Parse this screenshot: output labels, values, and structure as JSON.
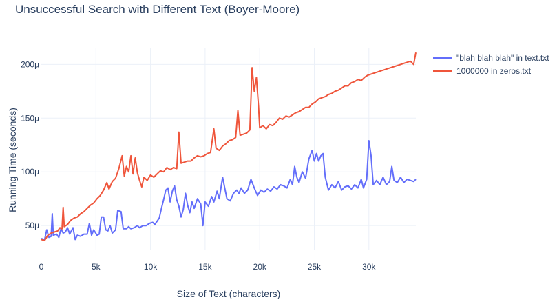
{
  "chart_data": {
    "type": "line",
    "title": "Unsuccessful Search with Different Text (Boyer-Moore)",
    "xlabel": "Size of Text (characters)",
    "ylabel": "Running Time (seconds)",
    "xlim": [
      0,
      34300
    ],
    "ylim": [
      2.7e-05,
      0.000215
    ],
    "x_ticks": [
      {
        "value": 0,
        "label": "0"
      },
      {
        "value": 5000,
        "label": "5k"
      },
      {
        "value": 10000,
        "label": "10k"
      },
      {
        "value": 15000,
        "label": "15k"
      },
      {
        "value": 20000,
        "label": "20k"
      },
      {
        "value": 25000,
        "label": "25k"
      },
      {
        "value": 30000,
        "label": "30k"
      }
    ],
    "y_ticks": [
      {
        "value": 5e-05,
        "label": "50μ"
      },
      {
        "value": 0.0001,
        "label": "100μ"
      },
      {
        "value": 0.00015,
        "label": "150μ"
      },
      {
        "value": 0.0002,
        "label": "200μ"
      }
    ],
    "grid": true,
    "legend_position": "top-right",
    "series": [
      {
        "name": "\"blah blah blah\" in text.txt",
        "color": "#636efa",
        "points": [
          [
            0,
            3.8e-05
          ],
          [
            300,
            3.7e-05
          ],
          [
            500,
            4.6e-05
          ],
          [
            700,
            3.9e-05
          ],
          [
            900,
            4e-05
          ],
          [
            1000,
            6.1e-05
          ],
          [
            1100,
            4.1e-05
          ],
          [
            1400,
            4.2e-05
          ],
          [
            1600,
            3.9e-05
          ],
          [
            1800,
            4.7e-05
          ],
          [
            2000,
            4.3e-05
          ],
          [
            2200,
            4.4e-05
          ],
          [
            2400,
            4.8e-05
          ],
          [
            2600,
            4.2e-05
          ],
          [
            2900,
            4.8e-05
          ],
          [
            3100,
            3.7e-05
          ],
          [
            3300,
            4.1e-05
          ],
          [
            3600,
            4e-05
          ],
          [
            3900,
            4.2e-05
          ],
          [
            4200,
            4.2e-05
          ],
          [
            4400,
            5.2e-05
          ],
          [
            4600,
            4.1e-05
          ],
          [
            4800,
            4.6e-05
          ],
          [
            5100,
            4.1e-05
          ],
          [
            5300,
            4.2e-05
          ],
          [
            5500,
            5.8e-05
          ],
          [
            5700,
            5.8e-05
          ],
          [
            5900,
            4.6e-05
          ],
          [
            6100,
            4.5e-05
          ],
          [
            6300,
            5e-05
          ],
          [
            6500,
            4.3e-05
          ],
          [
            6800,
            4.6e-05
          ],
          [
            7000,
            6.4e-05
          ],
          [
            7300,
            6.3e-05
          ],
          [
            7500,
            4.7e-05
          ],
          [
            7800,
            4.7e-05
          ],
          [
            8000,
            4.9e-05
          ],
          [
            8200,
            4.7e-05
          ],
          [
            8500,
            4.8e-05
          ],
          [
            8800,
            5e-05
          ],
          [
            9000,
            4.8e-05
          ],
          [
            9300,
            5e-05
          ],
          [
            9600,
            5e-05
          ],
          [
            9900,
            5.2e-05
          ],
          [
            10200,
            5.3e-05
          ],
          [
            10400,
            5.1e-05
          ],
          [
            10600,
            5.4e-05
          ],
          [
            10800,
            5.7e-05
          ],
          [
            11000,
            6.6e-05
          ],
          [
            11200,
            7.4e-05
          ],
          [
            11400,
            8.3e-05
          ],
          [
            11600,
            8.5e-05
          ],
          [
            11800,
            7.2e-05
          ],
          [
            12000,
            8.2e-05
          ],
          [
            12200,
            8.7e-05
          ],
          [
            12400,
            7.4e-05
          ],
          [
            12600,
            6.8e-05
          ],
          [
            12800,
            5.8e-05
          ],
          [
            13000,
            6.5e-05
          ],
          [
            13200,
            8e-05
          ],
          [
            13400,
            6.9e-05
          ],
          [
            13600,
            6.2e-05
          ],
          [
            13800,
            7.2e-05
          ],
          [
            14000,
            6.6e-05
          ],
          [
            14300,
            7.5e-05
          ],
          [
            14600,
            7e-05
          ],
          [
            14800,
            5e-05
          ],
          [
            15000,
            7.2e-05
          ],
          [
            15300,
            6.8e-05
          ],
          [
            15600,
            7.7e-05
          ],
          [
            15800,
            7.2e-05
          ],
          [
            16100,
            8.2e-05
          ],
          [
            16300,
            7.5e-05
          ],
          [
            16600,
            9.5e-05
          ],
          [
            16800,
            8.5e-05
          ],
          [
            17000,
            7.5e-05
          ],
          [
            17300,
            7.3e-05
          ],
          [
            17600,
            8e-05
          ],
          [
            17900,
            8.3e-05
          ],
          [
            18100,
            8e-05
          ],
          [
            18300,
            8.5e-05
          ],
          [
            18600,
            8e-05
          ],
          [
            18900,
            8.3e-05
          ],
          [
            19200,
            9.3e-05
          ],
          [
            19500,
            8.5e-05
          ],
          [
            19800,
            7.8e-05
          ],
          [
            20100,
            8.3e-05
          ],
          [
            20400,
            8.1e-05
          ],
          [
            20700,
            8.4e-05
          ],
          [
            21000,
            8.2e-05
          ],
          [
            21300,
            8.6e-05
          ],
          [
            21600,
            8.4e-05
          ],
          [
            21900,
            8.8e-05
          ],
          [
            22200,
            8.7e-05
          ],
          [
            22500,
            8.5e-05
          ],
          [
            22800,
            9.3e-05
          ],
          [
            23000,
            8.8e-05
          ],
          [
            23200,
            0.000105
          ],
          [
            23400,
            9.5e-05
          ],
          [
            23600,
            9e-05
          ],
          [
            23900,
            0.0001
          ],
          [
            24200,
            9.4e-05
          ],
          [
            24500,
            0.000112
          ],
          [
            24800,
            0.00012
          ],
          [
            25000,
            0.00011
          ],
          [
            25200,
            0.000117
          ],
          [
            25400,
            0.00011
          ],
          [
            25600,
            0.000115
          ],
          [
            25800,
            0.000117
          ],
          [
            26000,
            9.5e-05
          ],
          [
            26300,
            8.3e-05
          ],
          [
            26600,
            8.8e-05
          ],
          [
            26900,
            8.5e-05
          ],
          [
            27200,
            9.1e-05
          ],
          [
            27500,
            8.3e-05
          ],
          [
            27800,
            8.6e-05
          ],
          [
            28100,
            8.7e-05
          ],
          [
            28400,
            8.4e-05
          ],
          [
            28700,
            8.8e-05
          ],
          [
            29000,
            8.5e-05
          ],
          [
            29300,
            9.3e-05
          ],
          [
            29500,
            8.5e-05
          ],
          [
            29800,
            9.3e-05
          ],
          [
            30000,
            0.000129
          ],
          [
            30200,
            0.000115
          ],
          [
            30400,
            8.8e-05
          ],
          [
            30700,
            9.2e-05
          ],
          [
            31000,
            8.8e-05
          ],
          [
            31300,
            9.5e-05
          ],
          [
            31600,
            8.8e-05
          ],
          [
            31900,
            9.1e-05
          ],
          [
            32100,
            0.000105
          ],
          [
            32300,
            9.2e-05
          ],
          [
            32600,
            9e-05
          ],
          [
            32900,
            9.5e-05
          ],
          [
            33200,
            9e-05
          ],
          [
            33500,
            9.3e-05
          ],
          [
            33800,
            9.2e-05
          ],
          [
            34100,
            9.1e-05
          ],
          [
            34300,
            9.3e-05
          ]
        ]
      },
      {
        "name": "1000000 in zeros.txt",
        "color": "#ef553b",
        "points": [
          [
            0,
            3.7e-05
          ],
          [
            300,
            3.6e-05
          ],
          [
            600,
            4.1e-05
          ],
          [
            900,
            4.3e-05
          ],
          [
            1200,
            4.4e-05
          ],
          [
            1500,
            4.5e-05
          ],
          [
            1700,
            4.8e-05
          ],
          [
            1900,
            4.7e-05
          ],
          [
            2000,
            6.7e-05
          ],
          [
            2100,
            4.9e-05
          ],
          [
            2400,
            5.1e-05
          ],
          [
            2700,
            5.5e-05
          ],
          [
            3000,
            5.7e-05
          ],
          [
            3300,
            5.8e-05
          ],
          [
            3600,
            6.1e-05
          ],
          [
            3900,
            6.3e-05
          ],
          [
            4200,
            6.6e-05
          ],
          [
            4500,
            6.9e-05
          ],
          [
            4800,
            7.1e-05
          ],
          [
            5100,
            7.5e-05
          ],
          [
            5400,
            7.8e-05
          ],
          [
            5700,
            8.3e-05
          ],
          [
            6000,
            9e-05
          ],
          [
            6200,
            8.4e-05
          ],
          [
            6500,
            9.1e-05
          ],
          [
            6800,
            9.4e-05
          ],
          [
            7100,
            0.000103
          ],
          [
            7400,
            0.000115
          ],
          [
            7600,
            9.6e-05
          ],
          [
            7800,
            0.000105
          ],
          [
            8000,
            0.0001
          ],
          [
            8200,
            0.000115
          ],
          [
            8400,
            9.8e-05
          ],
          [
            8600,
            0.000113
          ],
          [
            8800,
            9.9e-05
          ],
          [
            9000,
            9.2e-05
          ],
          [
            9200,
            8.6e-05
          ],
          [
            9400,
            9.5e-05
          ],
          [
            9700,
            9.2e-05
          ],
          [
            10000,
            9.7e-05
          ],
          [
            10300,
            9.5e-05
          ],
          [
            10600,
            9.8e-05
          ],
          [
            10900,
            0.000101
          ],
          [
            11200,
            0.0001
          ],
          [
            11500,
            0.000104
          ],
          [
            11800,
            0.000102
          ],
          [
            12100,
            0.000104
          ],
          [
            12400,
            0.000103
          ],
          [
            12600,
            0.000137
          ],
          [
            12800,
            0.000108
          ],
          [
            13100,
            0.000109
          ],
          [
            13400,
            0.00011
          ],
          [
            13700,
            0.00011
          ],
          [
            14000,
            0.000113
          ],
          [
            14300,
            0.000115
          ],
          [
            14600,
            0.000114
          ],
          [
            14900,
            0.000115
          ],
          [
            15200,
            0.000117
          ],
          [
            15500,
            0.000118
          ],
          [
            15800,
            0.00014
          ],
          [
            16000,
            0.000122
          ],
          [
            16300,
            0.00012
          ],
          [
            16600,
            0.000124
          ],
          [
            16900,
            0.000126
          ],
          [
            17200,
            0.000129
          ],
          [
            17500,
            0.00013
          ],
          [
            17800,
            0.000132
          ],
          [
            18000,
            0.000157
          ],
          [
            18200,
            0.000134
          ],
          [
            18500,
            0.000135
          ],
          [
            18800,
            0.000136
          ],
          [
            19100,
            0.000139
          ],
          [
            19300,
            0.000197
          ],
          [
            19500,
            0.000175
          ],
          [
            19700,
            0.000188
          ],
          [
            19900,
            0.00016
          ],
          [
            20000,
            0.000141
          ],
          [
            20300,
            0.000143
          ],
          [
            20600,
            0.00014
          ],
          [
            20900,
            0.000144
          ],
          [
            21200,
            0.000143
          ],
          [
            21500,
            0.000146
          ],
          [
            21800,
            0.00015
          ],
          [
            22100,
            0.000149
          ],
          [
            22400,
            0.000152
          ],
          [
            22700,
            0.000151
          ],
          [
            23000,
            0.000153
          ],
          [
            23300,
            0.000155
          ],
          [
            23600,
            0.000156
          ],
          [
            23900,
            0.000158
          ],
          [
            24200,
            0.00016
          ],
          [
            24500,
            0.00016
          ],
          [
            24800,
            0.000163
          ],
          [
            25100,
            0.000165
          ],
          [
            25400,
            0.000168
          ],
          [
            25700,
            0.000169
          ],
          [
            26000,
            0.00017
          ],
          [
            26300,
            0.000172
          ],
          [
            26600,
            0.000173
          ],
          [
            26900,
            0.000175
          ],
          [
            27200,
            0.000176
          ],
          [
            27500,
            0.000178
          ],
          [
            27800,
            0.00018
          ],
          [
            28100,
            0.00018
          ],
          [
            28400,
            0.000183
          ],
          [
            28700,
            0.000184
          ],
          [
            29000,
            0.000186
          ],
          [
            29300,
            0.000185
          ],
          [
            29600,
            0.000188
          ],
          [
            29900,
            0.00019
          ],
          [
            30200,
            0.000191
          ],
          [
            30500,
            0.000192
          ],
          [
            30800,
            0.000193
          ],
          [
            31100,
            0.000194
          ],
          [
            31400,
            0.000195
          ],
          [
            31700,
            0.000196
          ],
          [
            32000,
            0.000197
          ],
          [
            32300,
            0.000198
          ],
          [
            32600,
            0.000199
          ],
          [
            32900,
            0.0002
          ],
          [
            33200,
            0.000201
          ],
          [
            33500,
            0.000202
          ],
          [
            33800,
            0.000203
          ],
          [
            34100,
            0.0002
          ],
          [
            34300,
            0.000211
          ]
        ]
      }
    ]
  }
}
